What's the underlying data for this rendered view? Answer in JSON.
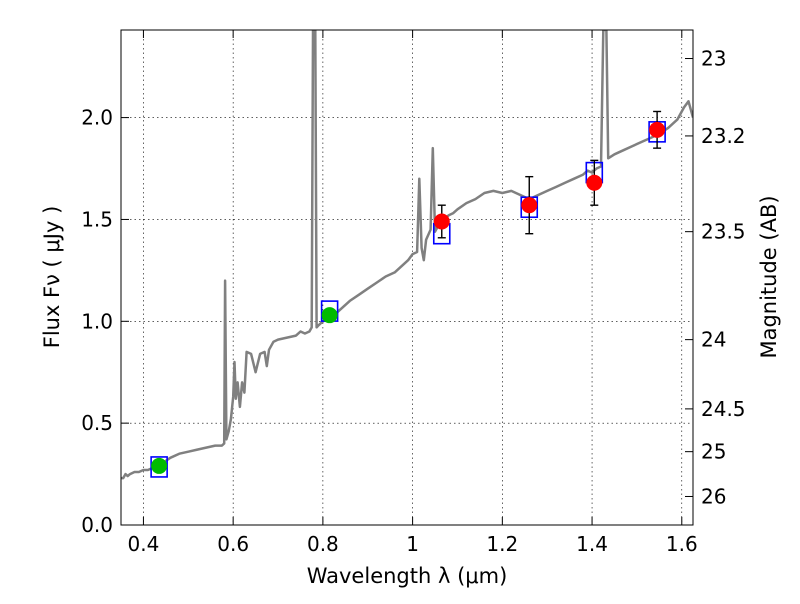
{
  "chart_data": {
    "type": "line",
    "xlabel": "Wavelength  λ (μm)",
    "ylabel": "Flux  Fν  ( μJy )",
    "ylabel_right": "Magnitude (AB)",
    "xlim": [
      0.35,
      1.625
    ],
    "ylim": [
      0.0,
      2.43
    ],
    "grid": true,
    "x_ticks": [
      0.4,
      0.6,
      0.8,
      1.0,
      1.2,
      1.4,
      1.6
    ],
    "x_tick_labels": [
      "0.4",
      "0.6",
      "0.8",
      "1",
      "1.2",
      "1.4",
      "1.6"
    ],
    "y_ticks": [
      0.0,
      0.5,
      1.0,
      1.5,
      2.0
    ],
    "y_tick_labels": [
      "0.0",
      "0.5",
      "1.0",
      "1.5",
      "2.0"
    ],
    "right_ticks": [
      {
        "label": "23",
        "flux": 2.29
      },
      {
        "label": "23.2",
        "flux": 1.91
      },
      {
        "label": "23.5",
        "flux": 1.44
      },
      {
        "label": "24",
        "flux": 0.91
      },
      {
        "label": "24.5",
        "flux": 0.57
      },
      {
        "label": "25",
        "flux": 0.36
      },
      {
        "label": "26",
        "flux": 0.14
      }
    ],
    "series": [
      {
        "kind": "spectrum",
        "color": "#808080",
        "points": [
          [
            0.35,
            0.23
          ],
          [
            0.355,
            0.23
          ],
          [
            0.36,
            0.25
          ],
          [
            0.365,
            0.24
          ],
          [
            0.37,
            0.25
          ],
          [
            0.38,
            0.26
          ],
          [
            0.39,
            0.26
          ],
          [
            0.4,
            0.27
          ],
          [
            0.41,
            0.27
          ],
          [
            0.42,
            0.28
          ],
          [
            0.44,
            0.3
          ],
          [
            0.46,
            0.33
          ],
          [
            0.48,
            0.35
          ],
          [
            0.5,
            0.36
          ],
          [
            0.52,
            0.37
          ],
          [
            0.54,
            0.38
          ],
          [
            0.56,
            0.39
          ],
          [
            0.575,
            0.39
          ],
          [
            0.58,
            0.4
          ],
          [
            0.582,
            1.2
          ],
          [
            0.585,
            0.42
          ],
          [
            0.59,
            0.46
          ],
          [
            0.595,
            0.52
          ],
          [
            0.6,
            0.63
          ],
          [
            0.603,
            0.8
          ],
          [
            0.606,
            0.62
          ],
          [
            0.61,
            0.7
          ],
          [
            0.615,
            0.58
          ],
          [
            0.62,
            0.7
          ],
          [
            0.625,
            0.65
          ],
          [
            0.63,
            0.85
          ],
          [
            0.64,
            0.84
          ],
          [
            0.65,
            0.75
          ],
          [
            0.66,
            0.84
          ],
          [
            0.67,
            0.85
          ],
          [
            0.675,
            0.78
          ],
          [
            0.68,
            0.86
          ],
          [
            0.69,
            0.9
          ],
          [
            0.7,
            0.91
          ],
          [
            0.72,
            0.92
          ],
          [
            0.74,
            0.93
          ],
          [
            0.75,
            0.95
          ],
          [
            0.76,
            0.94
          ],
          [
            0.77,
            0.95
          ],
          [
            0.775,
            0.97
          ],
          [
            0.778,
            2.43
          ],
          [
            0.783,
            2.43
          ],
          [
            0.786,
            0.97
          ],
          [
            0.79,
            0.98
          ],
          [
            0.8,
            1.0
          ],
          [
            0.82,
            1.02
          ],
          [
            0.84,
            1.06
          ],
          [
            0.86,
            1.1
          ],
          [
            0.88,
            1.13
          ],
          [
            0.9,
            1.16
          ],
          [
            0.92,
            1.19
          ],
          [
            0.94,
            1.22
          ],
          [
            0.96,
            1.24
          ],
          [
            0.98,
            1.28
          ],
          [
            0.99,
            1.3
          ],
          [
            1.0,
            1.33
          ],
          [
            1.01,
            1.34
          ],
          [
            1.015,
            1.7
          ],
          [
            1.02,
            1.36
          ],
          [
            1.025,
            1.3
          ],
          [
            1.03,
            1.4
          ],
          [
            1.04,
            1.45
          ],
          [
            1.045,
            1.85
          ],
          [
            1.05,
            1.44
          ],
          [
            1.06,
            1.48
          ],
          [
            1.07,
            1.5
          ],
          [
            1.08,
            1.52
          ],
          [
            1.09,
            1.53
          ],
          [
            1.1,
            1.55
          ],
          [
            1.12,
            1.58
          ],
          [
            1.14,
            1.6
          ],
          [
            1.16,
            1.63
          ],
          [
            1.18,
            1.64
          ],
          [
            1.2,
            1.63
          ],
          [
            1.22,
            1.64
          ],
          [
            1.24,
            1.62
          ],
          [
            1.26,
            1.6
          ],
          [
            1.28,
            1.62
          ],
          [
            1.3,
            1.64
          ],
          [
            1.32,
            1.66
          ],
          [
            1.34,
            1.68
          ],
          [
            1.36,
            1.7
          ],
          [
            1.38,
            1.72
          ],
          [
            1.39,
            1.74
          ],
          [
            1.4,
            1.73
          ],
          [
            1.41,
            1.75
          ],
          [
            1.42,
            1.76
          ],
          [
            1.425,
            2.43
          ],
          [
            1.432,
            2.43
          ],
          [
            1.436,
            1.8
          ],
          [
            1.45,
            1.82
          ],
          [
            1.47,
            1.84
          ],
          [
            1.49,
            1.86
          ],
          [
            1.51,
            1.88
          ],
          [
            1.53,
            1.9
          ],
          [
            1.55,
            1.92
          ],
          [
            1.57,
            1.95
          ],
          [
            1.59,
            1.99
          ],
          [
            1.605,
            2.05
          ],
          [
            1.615,
            2.08
          ],
          [
            1.625,
            2.0
          ]
        ]
      },
      {
        "kind": "model_boxes",
        "color": "#0000ff",
        "points": [
          {
            "x": 0.435,
            "y": 0.285
          },
          {
            "x": 0.815,
            "y": 1.05
          },
          {
            "x": 1.065,
            "y": 1.43
          },
          {
            "x": 1.26,
            "y": 1.56
          },
          {
            "x": 1.405,
            "y": 1.73
          },
          {
            "x": 1.545,
            "y": 1.93
          }
        ]
      },
      {
        "kind": "observed_points",
        "points": [
          {
            "x": 0.435,
            "y": 0.29,
            "err": 0.02,
            "color": "#00bb00"
          },
          {
            "x": 0.815,
            "y": 1.03,
            "err": 0.02,
            "color": "#00bb00"
          },
          {
            "x": 1.065,
            "y": 1.49,
            "err": 0.08,
            "color": "#ff0000"
          },
          {
            "x": 1.26,
            "y": 1.57,
            "err": 0.14,
            "color": "#ff0000"
          },
          {
            "x": 1.405,
            "y": 1.68,
            "err": 0.11,
            "color": "#ff0000"
          },
          {
            "x": 1.545,
            "y": 1.94,
            "err": 0.09,
            "color": "#ff0000"
          }
        ]
      }
    ]
  }
}
